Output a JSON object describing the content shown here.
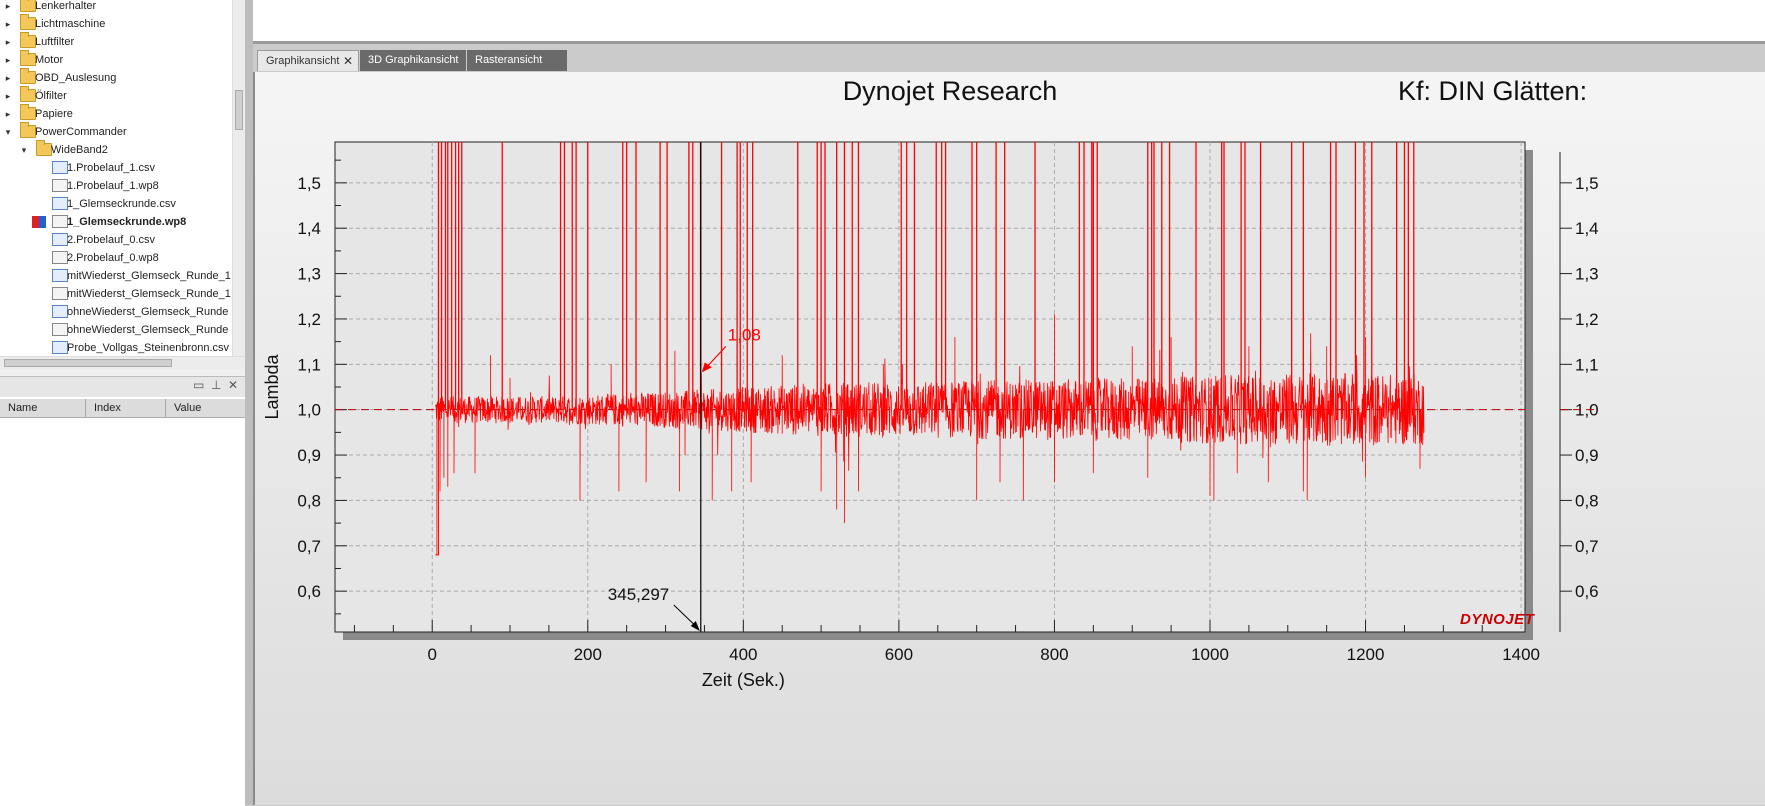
{
  "tree": {
    "items": [
      {
        "label": "Lenkerhalter",
        "kind": "folder",
        "level": 1,
        "expander": "▸"
      },
      {
        "label": "Lichtmaschine",
        "kind": "folder",
        "level": 1,
        "expander": "▸"
      },
      {
        "label": "Luftfilter",
        "kind": "folder",
        "level": 1,
        "expander": "▸"
      },
      {
        "label": "Motor",
        "kind": "folder",
        "level": 1,
        "expander": "▸"
      },
      {
        "label": "OBD_Auslesung",
        "kind": "folder",
        "level": 1,
        "expander": "▸"
      },
      {
        "label": "Ölfilter",
        "kind": "folder",
        "level": 1,
        "expander": "▸"
      },
      {
        "label": "Papiere",
        "kind": "folder",
        "level": 1,
        "expander": "▸"
      },
      {
        "label": "PowerCommander",
        "kind": "folder",
        "level": 1,
        "expander": "▾"
      },
      {
        "label": "WideBand2",
        "kind": "folder",
        "level": 2,
        "expander": "▾"
      },
      {
        "label": "1.Probelauf_1.csv",
        "kind": "csv",
        "level": 3
      },
      {
        "label": "1.Probelauf_1.wp8",
        "kind": "wp8",
        "level": 3
      },
      {
        "label": "1_Glemseckrunde.csv",
        "kind": "csv",
        "level": 3
      },
      {
        "label": "1_Glemseckrunde.wp8",
        "kind": "wp8",
        "level": 3,
        "selected": true
      },
      {
        "label": "2.Probelauf_0.csv",
        "kind": "csv",
        "level": 3
      },
      {
        "label": "2.Probelauf_0.wp8",
        "kind": "wp8",
        "level": 3
      },
      {
        "label": "mitWiederst_Glemseck_Runde_1",
        "kind": "csv",
        "level": 3
      },
      {
        "label": "mitWiederst_Glemseck_Runde_1",
        "kind": "wp8",
        "level": 3
      },
      {
        "label": "ohneWiederst_Glemseck_Runde",
        "kind": "csv",
        "level": 3
      },
      {
        "label": "ohneWiederst_Glemseck_Runde",
        "kind": "wp8",
        "level": 3
      },
      {
        "label": "Probe_Vollgas_Steinenbronn.csv",
        "kind": "csv",
        "level": 3
      }
    ]
  },
  "properties_panel": {
    "controls": [
      "▭",
      "⊥",
      "✕"
    ],
    "columns": [
      "Name",
      "Index",
      "Value"
    ]
  },
  "tabs": [
    {
      "label": "Graphikansicht",
      "active": true,
      "close": "✕"
    },
    {
      "label": "3D Graphikansicht",
      "active": false
    },
    {
      "label": "Rasteransicht",
      "active": false
    }
  ],
  "colors": {
    "series": "#ff0000",
    "crosshair": "#000000",
    "reference_line": "#c00000",
    "logo": "#cc0000"
  },
  "chart_data": {
    "type": "line",
    "title": "Dynojet Research",
    "right_title": "Kf: DIN Glätten:",
    "xlabel": "Zeit (Sek.)",
    "ylabel": "Lambda",
    "xlim": [
      -125,
      1405
    ],
    "ylim": [
      0.51,
      1.59
    ],
    "x_ticks": [
      0,
      200,
      400,
      600,
      800,
      1000,
      1200,
      1400
    ],
    "x_tick_labels": [
      "0",
      "200",
      "400",
      "600",
      "800",
      "1000",
      "1200",
      "1400"
    ],
    "y_ticks": [
      0.6,
      0.7,
      0.8,
      0.9,
      1.0,
      1.1,
      1.2,
      1.3,
      1.4,
      1.5
    ],
    "y_tick_labels": [
      "0,6",
      "0,7",
      "0,8",
      "0,9",
      "1,0",
      "1,1",
      "1,2",
      "1,3",
      "1,4",
      "1,5"
    ],
    "reference_line": 1.0,
    "grid": true,
    "cursor": {
      "x": 345.297,
      "x_label": "345,297",
      "y": 1.08,
      "y_label": "1,08"
    },
    "logo": "DYNOJET",
    "series": [
      {
        "x_start": 4,
        "x_end": 1275,
        "baseline": 1.0,
        "noise_envelope": [
          [
            50,
            0.03
          ],
          [
            150,
            0.03
          ],
          [
            300,
            0.04
          ],
          [
            500,
            0.06
          ],
          [
            900,
            0.07
          ],
          [
            1100,
            0.08
          ],
          [
            1275,
            0.08
          ]
        ],
        "spikes_up": [
          8,
          12,
          17,
          20,
          25,
          30,
          34,
          38,
          90,
          165,
          170,
          180,
          185,
          200,
          245,
          250,
          262,
          293,
          302,
          330,
          335,
          345,
          372,
          392,
          396,
          405,
          412,
          470,
          495,
          500,
          505,
          520,
          530,
          540,
          548,
          603,
          610,
          620,
          648,
          655,
          660,
          694,
          700,
          725,
          736,
          775,
          832,
          838,
          848,
          850,
          855,
          920,
          925,
          928,
          938,
          948,
          982,
          1015,
          1018,
          1040,
          1045,
          1065,
          1105,
          1120,
          1155,
          1162,
          1187,
          1198,
          1208,
          1240,
          1250,
          1255,
          1262
        ],
        "spikes_down": [
          [
            6,
            0.68
          ],
          [
            10,
            0.82
          ],
          [
            15,
            0.85
          ],
          [
            20,
            0.83
          ],
          [
            28,
            0.86
          ],
          [
            55,
            0.86
          ],
          [
            190,
            0.8
          ],
          [
            240,
            0.82
          ],
          [
            275,
            0.84
          ],
          [
            318,
            0.82
          ],
          [
            325,
            0.9
          ],
          [
            360,
            0.8
          ],
          [
            385,
            0.82
          ],
          [
            410,
            0.84
          ],
          [
            500,
            0.82
          ],
          [
            520,
            0.78
          ],
          [
            530,
            0.75
          ],
          [
            548,
            0.82
          ],
          [
            700,
            0.8
          ],
          [
            730,
            0.84
          ],
          [
            760,
            0.8
          ],
          [
            800,
            0.84
          ],
          [
            850,
            0.86
          ],
          [
            920,
            0.85
          ],
          [
            1000,
            0.81
          ],
          [
            1005,
            0.8
          ],
          [
            1035,
            0.86
          ],
          [
            1075,
            0.84
          ],
          [
            1120,
            0.82
          ],
          [
            1125,
            0.8
          ],
          [
            1200,
            0.85
          ],
          [
            1270,
            0.87
          ]
        ],
        "small_peaks": [
          [
            12,
            1.15
          ],
          [
            75,
            1.12
          ],
          [
            100,
            1.07
          ],
          [
            230,
            1.1
          ],
          [
            312,
            1.13
          ],
          [
            346,
            1.08
          ],
          [
            450,
            1.12
          ],
          [
            500,
            1.13
          ],
          [
            580,
            1.1
          ],
          [
            672,
            1.16
          ],
          [
            700,
            1.18
          ],
          [
            800,
            1.21
          ],
          [
            900,
            1.14
          ],
          [
            950,
            1.16
          ],
          [
            1050,
            1.14
          ],
          [
            1150,
            1.14
          ],
          [
            1200,
            1.16
          ],
          [
            1250,
            1.13
          ]
        ]
      }
    ]
  }
}
